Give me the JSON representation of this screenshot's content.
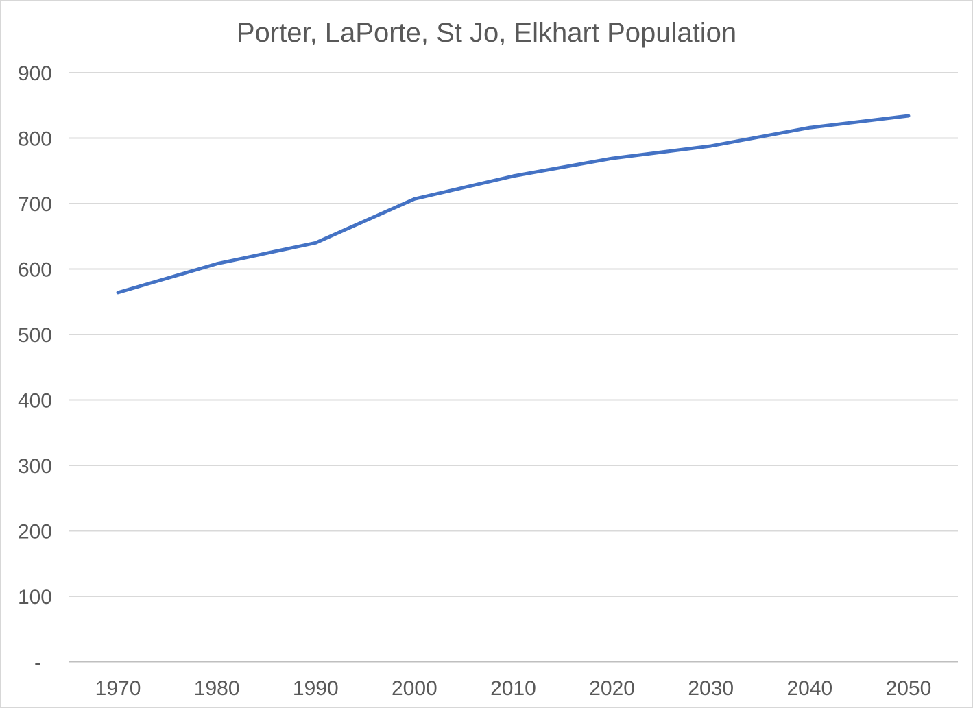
{
  "chart_data": {
    "type": "line",
    "title": "Porter, LaPorte, St Jo, Elkhart Population",
    "categories": [
      "1970",
      "1980",
      "1990",
      "2000",
      "2010",
      "2020",
      "2030",
      "2040",
      "2050"
    ],
    "series": [
      {
        "name": "Porter, LaPorte, St Jo, Elkhart Population",
        "values": [
          564,
          608,
          640,
          707,
          742,
          769,
          788,
          816,
          834
        ]
      }
    ],
    "xlabel": "",
    "ylabel": "",
    "ylim": [
      0,
      900
    ],
    "ytick_step": 100,
    "ytick_labels": [
      "-",
      "100",
      "200",
      "300",
      "400",
      "500",
      "600",
      "700",
      "800",
      "900"
    ],
    "grid": true,
    "legend_position": "none",
    "colors": {
      "line": "#4472C4",
      "gridline": "#D9D9D9",
      "axis_line": "#BFBFBF",
      "tick_text": "#595959",
      "title_text": "#595959",
      "background": "#FFFFFF"
    }
  }
}
